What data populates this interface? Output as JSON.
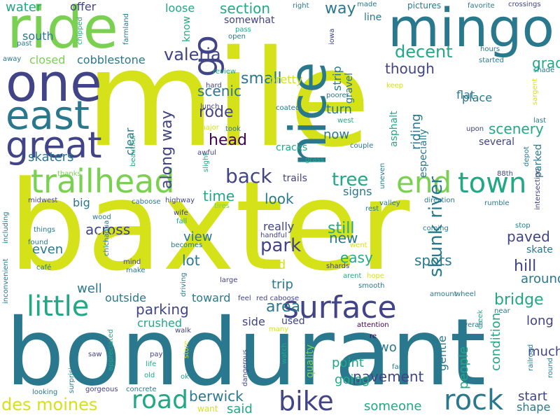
{
  "cloud": {
    "background": "#ffffff",
    "palette": [
      "#d5e21a",
      "#7ad151",
      "#22a884",
      "#2a788e",
      "#414487",
      "#440154"
    ],
    "words": [
      {
        "text": "mile",
        "color": "#d5e21a"
      },
      {
        "text": "baxter",
        "color": "#d5e21a"
      },
      {
        "text": "bondurant",
        "color": "#2a788e"
      },
      {
        "text": "ride",
        "color": "#7ad151"
      },
      {
        "text": "one",
        "color": "#414487"
      },
      {
        "text": "mingo",
        "color": "#2a788e"
      },
      {
        "text": "nice",
        "color": "#2a788e"
      },
      {
        "text": "east",
        "color": "#2a788e"
      },
      {
        "text": "great",
        "color": "#414487"
      },
      {
        "text": "go",
        "color": "#414487"
      },
      {
        "text": "trailhead",
        "color": "#7ad151"
      },
      {
        "text": "end",
        "color": "#7ad151"
      },
      {
        "text": "town",
        "color": "#22a884"
      },
      {
        "text": "surface",
        "color": "#414487"
      },
      {
        "text": "little",
        "color": "#22a884"
      },
      {
        "text": "road",
        "color": "#22a884"
      },
      {
        "text": "bike",
        "color": "#414487"
      },
      {
        "text": "rock",
        "color": "#2a788e"
      },
      {
        "text": "des moines",
        "color": "#d5e21a"
      },
      {
        "text": "back",
        "color": "#414487"
      },
      {
        "text": "tree",
        "color": "#22a884"
      },
      {
        "text": "skunk river",
        "color": "#2a788e"
      },
      {
        "text": "park",
        "color": "#414487"
      },
      {
        "text": "valeria",
        "color": "#414487"
      },
      {
        "text": "decent",
        "color": "#22a884"
      },
      {
        "text": "section",
        "color": "#22a884"
      },
      {
        "text": "way",
        "color": "#2a788e"
      },
      {
        "text": "small",
        "color": "#2a788e"
      },
      {
        "text": "though",
        "color": "#414487"
      },
      {
        "text": "grade",
        "color": "#22a884"
      },
      {
        "text": "scenic",
        "color": "#2a788e"
      },
      {
        "text": "rode",
        "color": "#414487"
      },
      {
        "text": "head",
        "color": "#440154"
      },
      {
        "text": "skaters",
        "color": "#2a788e"
      },
      {
        "text": "along way",
        "color": "#414487"
      },
      {
        "text": "scenery",
        "color": "#22a884"
      },
      {
        "text": "parking",
        "color": "#414487"
      },
      {
        "text": "area",
        "color": "#2a788e"
      },
      {
        "text": "hill",
        "color": "#414487"
      },
      {
        "text": "bridge",
        "color": "#22a884"
      },
      {
        "text": "spots",
        "color": "#2a788e"
      },
      {
        "text": "paved",
        "color": "#414487"
      },
      {
        "text": "easy",
        "color": "#22a884"
      },
      {
        "text": "still",
        "color": "#22a884"
      },
      {
        "text": "new",
        "color": "#2a788e"
      },
      {
        "text": "look",
        "color": "#2a788e"
      },
      {
        "text": "time",
        "color": "#22a884"
      },
      {
        "text": "across",
        "color": "#414487"
      },
      {
        "text": "pavement",
        "color": "#414487"
      },
      {
        "text": "berwick",
        "color": "#2a788e"
      },
      {
        "text": "said",
        "color": "#22a884"
      },
      {
        "text": "someone",
        "color": "#22a884"
      },
      {
        "text": "two",
        "color": "#2a788e"
      },
      {
        "text": "point",
        "color": "#22a884"
      },
      {
        "text": "going",
        "color": "#22a884"
      },
      {
        "text": "lot",
        "color": "#2a788e"
      },
      {
        "text": "view",
        "color": "#2a788e"
      },
      {
        "text": "even",
        "color": "#2a788e"
      },
      {
        "text": "well",
        "color": "#2a788e"
      },
      {
        "text": "find",
        "color": "#d5e21a"
      },
      {
        "text": "trip",
        "color": "#2a788e"
      },
      {
        "text": "really",
        "color": "#414487"
      },
      {
        "text": "around",
        "color": "#2a788e"
      },
      {
        "text": "long",
        "color": "#414487"
      },
      {
        "text": "much",
        "color": "#414487"
      },
      {
        "text": "start",
        "color": "#414487"
      },
      {
        "text": "shape",
        "color": "#2a788e"
      },
      {
        "text": "people",
        "color": "#22a884"
      },
      {
        "text": "gentle",
        "color": "#2a788e"
      },
      {
        "text": "condition",
        "color": "#22a884"
      },
      {
        "text": "water",
        "color": "#22a884"
      },
      {
        "text": "offer",
        "color": "#414487"
      },
      {
        "text": "loose",
        "color": "#22a884"
      },
      {
        "text": "south",
        "color": "#2a788e"
      },
      {
        "text": "closed",
        "color": "#7ad151"
      },
      {
        "text": "cobblestone",
        "color": "#2a788e"
      },
      {
        "text": "somewhat",
        "color": "#414487"
      },
      {
        "text": "strip",
        "color": "#2a788e"
      },
      {
        "text": "gravel",
        "color": "#2a788e"
      },
      {
        "text": "pretty",
        "color": "#d5e21a"
      },
      {
        "text": "turn",
        "color": "#2a788e"
      },
      {
        "text": "now",
        "color": "#2a788e"
      },
      {
        "text": "riding",
        "color": "#2a788e"
      },
      {
        "text": "flat",
        "color": "#2a788e"
      },
      {
        "text": "asphalt",
        "color": "#22a884"
      },
      {
        "text": "especially",
        "color": "#2a788e"
      },
      {
        "text": "place",
        "color": "#2a788e"
      },
      {
        "text": "clear",
        "color": "#2a788e"
      },
      {
        "text": "several",
        "color": "#414487"
      },
      {
        "text": "parked",
        "color": "#2a788e"
      },
      {
        "text": "signs",
        "color": "#2a788e"
      },
      {
        "text": "trails",
        "color": "#414487"
      },
      {
        "text": "cracks",
        "color": "#22a884"
      },
      {
        "text": "big",
        "color": "#2a788e"
      },
      {
        "text": "outside",
        "color": "#2a788e"
      },
      {
        "text": "toward",
        "color": "#2a788e"
      },
      {
        "text": "crushed",
        "color": "#22a884"
      },
      {
        "text": "side",
        "color": "#414487"
      },
      {
        "text": "used",
        "color": "#414487"
      },
      {
        "text": "skate",
        "color": "#2a788e"
      },
      {
        "text": "know",
        "color": "#22a884"
      },
      {
        "text": "line",
        "color": "#2a788e"
      },
      {
        "text": "pictures",
        "color": "#2a788e"
      },
      {
        "text": "crossings",
        "color": "#414487"
      },
      {
        "text": "favorite",
        "color": "#2a788e"
      },
      {
        "text": "made",
        "color": "#2a788e"
      },
      {
        "text": "right",
        "color": "#2a788e"
      },
      {
        "text": "pass",
        "color": "#22a884"
      },
      {
        "text": "open",
        "color": "#2a788e"
      },
      {
        "text": "iowa",
        "color": "#414487"
      },
      {
        "text": "hours",
        "color": "#2a788e"
      },
      {
        "text": "started",
        "color": "#2a788e"
      },
      {
        "text": "shade",
        "color": "#2a788e"
      },
      {
        "text": "chipped",
        "color": "#22a884"
      },
      {
        "text": "farmland",
        "color": "#2a788e"
      },
      {
        "text": "past",
        "color": "#2a788e"
      },
      {
        "text": "away",
        "color": "#2a788e"
      },
      {
        "text": "review",
        "color": "#22a884"
      },
      {
        "text": "poorer",
        "color": "#2a788e"
      },
      {
        "text": "hard",
        "color": "#414487"
      },
      {
        "text": "lunch",
        "color": "#414487"
      },
      {
        "text": "coated",
        "color": "#2a788e"
      },
      {
        "text": "took",
        "color": "#2a788e"
      },
      {
        "text": "major",
        "color": "#d5e21a"
      },
      {
        "text": "west",
        "color": "#22a884"
      },
      {
        "text": "keep",
        "color": "#d5e21a"
      },
      {
        "text": "last",
        "color": "#2a788e"
      },
      {
        "text": "sargent",
        "color": "#d5e21a"
      },
      {
        "text": "upon",
        "color": "#414487"
      },
      {
        "text": "beautiful",
        "color": "#22a884"
      },
      {
        "text": "awful",
        "color": "#414487"
      },
      {
        "text": "slight",
        "color": "#22a884"
      },
      {
        "text": "couple",
        "color": "#2a788e"
      },
      {
        "text": "grass",
        "color": "#22a884"
      },
      {
        "text": "thanks",
        "color": "#7ad151"
      },
      {
        "text": "uneven",
        "color": "#2a788e"
      },
      {
        "text": "depot",
        "color": "#2a788e"
      },
      {
        "text": "intersection",
        "color": "#414487"
      },
      {
        "text": "88th",
        "color": "#414487"
      },
      {
        "text": "midwest",
        "color": "#414487"
      },
      {
        "text": "caboose",
        "color": "#2a788e"
      },
      {
        "text": "highway",
        "color": "#414487"
      },
      {
        "text": "tires",
        "color": "#7ad151"
      },
      {
        "text": "valley",
        "color": "#2a788e"
      },
      {
        "text": "direction",
        "color": "#2a788e"
      },
      {
        "text": "rumble",
        "color": "#2a788e"
      },
      {
        "text": "rest",
        "color": "#2a788e"
      },
      {
        "text": "wood",
        "color": "#2a788e"
      },
      {
        "text": "fall",
        "color": "#22a884"
      },
      {
        "text": "wife",
        "color": "#414487"
      },
      {
        "text": "coming",
        "color": "#2a788e"
      },
      {
        "text": "stop",
        "color": "#2a788e"
      },
      {
        "text": "including",
        "color": "#2a788e"
      },
      {
        "text": "things",
        "color": "#2a788e"
      },
      {
        "text": "temp",
        "color": "#d5e21a"
      },
      {
        "text": "handful",
        "color": "#414487"
      },
      {
        "text": "becomes",
        "color": "#2a788e"
      },
      {
        "text": "went",
        "color": "#d5e21a"
      },
      {
        "text": "found",
        "color": "#2a788e"
      },
      {
        "text": "chichaqua",
        "color": "#2a788e"
      },
      {
        "text": "mind",
        "color": "#414487"
      },
      {
        "text": "make",
        "color": "#2a788e"
      },
      {
        "text": "inconvenient",
        "color": "#2a788e"
      },
      {
        "text": "café",
        "color": "#2a788e"
      },
      {
        "text": "driving",
        "color": "#2a788e"
      },
      {
        "text": "large",
        "color": "#414487"
      },
      {
        "text": "shards",
        "color": "#414487"
      },
      {
        "text": "arent",
        "color": "#22a884"
      },
      {
        "text": "hope",
        "color": "#d5e21a"
      },
      {
        "text": "smooth",
        "color": "#2a788e"
      },
      {
        "text": "feel",
        "color": "#414487"
      },
      {
        "text": "red caboose",
        "color": "#414487"
      },
      {
        "text": "amount",
        "color": "#2a788e"
      },
      {
        "text": "wheel",
        "color": "#2a788e"
      },
      {
        "text": "near",
        "color": "#2a788e"
      },
      {
        "text": "creek",
        "color": "#22a884"
      },
      {
        "text": "overall",
        "color": "#2a788e"
      },
      {
        "text": "attention",
        "color": "#440154"
      },
      {
        "text": "re",
        "color": "#440154"
      },
      {
        "text": "many",
        "color": "#d5e21a"
      },
      {
        "text": "walk",
        "color": "#414487"
      },
      {
        "text": "pay",
        "color": "#414487"
      },
      {
        "text": "life",
        "color": "#22a884"
      },
      {
        "text": "old",
        "color": "#22a884"
      },
      {
        "text": "ok",
        "color": "#22a884"
      },
      {
        "text": "store",
        "color": "#d5e21a"
      },
      {
        "text": "watch",
        "color": "#22a884"
      },
      {
        "text": "quality",
        "color": "#7ad151"
      },
      {
        "text": "dangerous",
        "color": "#414487"
      },
      {
        "text": "saw",
        "color": "#414487"
      },
      {
        "text": "appreciated",
        "color": "#22a884"
      },
      {
        "text": "surprising",
        "color": "#2a788e"
      },
      {
        "text": "gorgeous",
        "color": "#414487"
      },
      {
        "text": "concrete",
        "color": "#2a788e"
      },
      {
        "text": "looking",
        "color": "#2a788e"
      },
      {
        "text": "want",
        "color": "#d5e21a"
      },
      {
        "text": "far",
        "color": "#2a788e"
      },
      {
        "text": "railroad",
        "color": "#2a788e"
      },
      {
        "text": "round",
        "color": "#2a788e"
      }
    ]
  }
}
